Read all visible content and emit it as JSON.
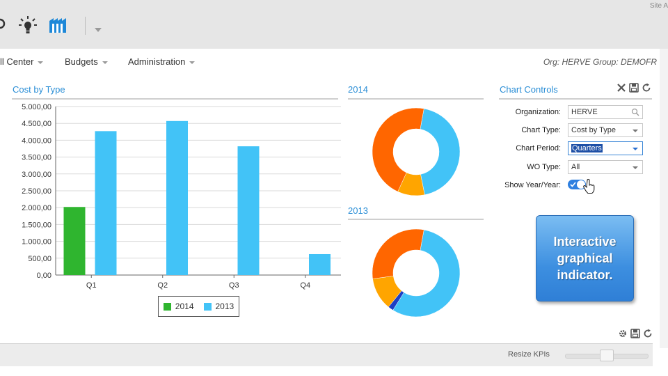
{
  "site_text": "Site A",
  "toolbar": {
    "icons": [
      "partial-icon",
      "lightbulb-icon",
      "factory-icon",
      "dropdown-caret-icon"
    ]
  },
  "menu": {
    "items": [
      {
        "label": "ll Center"
      },
      {
        "label": "Budgets"
      },
      {
        "label": "Administration"
      }
    ],
    "org_info": "Org: HERVE Group: DEMOFR"
  },
  "cost_panel": {
    "title": "Cost by Type"
  },
  "chart_data": [
    {
      "type": "bar",
      "title": "Cost by Type",
      "categories": [
        "Q1",
        "Q2",
        "Q3",
        "Q4"
      ],
      "series": [
        {
          "name": "2014",
          "values": [
            2020,
            0,
            0,
            0
          ],
          "color": "#2fb52f"
        },
        {
          "name": "2013",
          "values": [
            4270,
            4570,
            3820,
            620
          ],
          "color": "#42c3f7"
        }
      ],
      "ylim": [
        0,
        5000
      ],
      "yticks": [
        "0,00",
        "500,00",
        "1.000,00",
        "1.500,00",
        "2.000,00",
        "2.500,00",
        "3.000,00",
        "3.500,00",
        "4.000,00",
        "4.500,00",
        "5.000,00"
      ],
      "grid": true,
      "legend": "bottom-center"
    },
    {
      "type": "pie",
      "title": "2014",
      "donut": true,
      "slices": [
        {
          "value": 44,
          "color": "#42c3f7"
        },
        {
          "value": 10,
          "color": "#ffa500"
        },
        {
          "value": 46,
          "color": "#ff6600"
        }
      ]
    },
    {
      "type": "pie",
      "title": "2013",
      "donut": true,
      "slices": [
        {
          "value": 56,
          "color": "#42c3f7"
        },
        {
          "value": 2,
          "color": "#1c3fc4"
        },
        {
          "value": 12,
          "color": "#ffa500"
        },
        {
          "value": 30,
          "color": "#ff6600"
        }
      ]
    }
  ],
  "chart_controls": {
    "title": "Chart Controls",
    "icons": [
      "close-icon",
      "save-icon",
      "refresh-icon"
    ],
    "fields": {
      "organization": {
        "label": "Organization:",
        "value": "HERVE"
      },
      "chart_type": {
        "label": "Chart Type:",
        "value": "Cost by Type"
      },
      "chart_period": {
        "label": "Chart Period:",
        "value": "Quarters"
      },
      "wo_type": {
        "label": "WO Type:",
        "value": "All"
      },
      "show_year": {
        "label": "Show Year/Year:",
        "on": true
      }
    }
  },
  "callout": {
    "text": "Interactive\ngraphical\nindicator."
  },
  "kpi_bar": {
    "resize_label": "Resize KPIs",
    "slider_value": 0.5,
    "icons": [
      "gear-icon",
      "save-icon",
      "refresh-icon"
    ]
  }
}
